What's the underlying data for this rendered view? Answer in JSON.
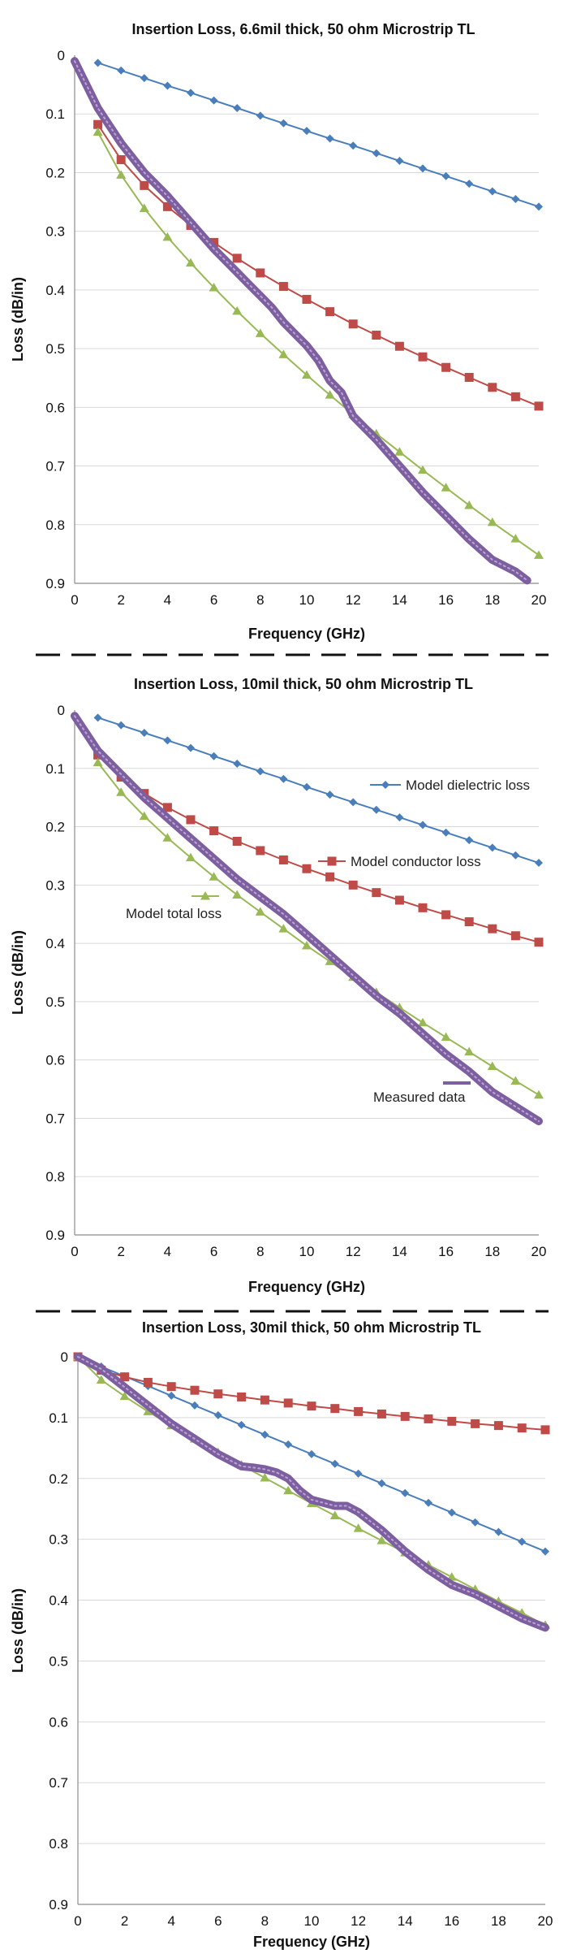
{
  "colors": {
    "dielectric": "#4a7ebb",
    "conductor": "#be4b48",
    "total": "#98b954",
    "measured": "#7d5fa0",
    "separator": "#111111"
  },
  "chart_data": [
    {
      "type": "line",
      "title": "Insertion Loss, 6.6mil thick, 50 ohm Microstrip TL",
      "xlabel": "Frequency (GHz)",
      "ylabel": "Loss (dB/in)",
      "xlim": [
        0,
        20
      ],
      "ylim": [
        0,
        0.9
      ],
      "y_reversed": true,
      "xticks": [
        "0",
        "2",
        "4",
        "6",
        "8",
        "10",
        "12",
        "14",
        "16",
        "18",
        "20"
      ],
      "yticks": [
        "0",
        "0.1",
        "0.2",
        "0.3",
        "0.4",
        "0.5",
        "0.6",
        "0.7",
        "0.8",
        "0.9"
      ],
      "grid": "horizontal",
      "legend": [],
      "series": [
        {
          "key": "dielectric",
          "marker": "diamond",
          "x": [
            1,
            2,
            3,
            4,
            5,
            6,
            7,
            8,
            9,
            10,
            11,
            12,
            13,
            14,
            15,
            16,
            17,
            18,
            19,
            20
          ],
          "y": [
            0.013,
            0.026,
            0.039,
            0.052,
            0.064,
            0.077,
            0.09,
            0.103,
            0.116,
            0.129,
            0.142,
            0.154,
            0.167,
            0.18,
            0.193,
            0.206,
            0.219,
            0.232,
            0.245,
            0.258
          ]
        },
        {
          "key": "conductor",
          "marker": "square",
          "x": [
            1,
            2,
            3,
            4,
            5,
            6,
            7,
            8,
            9,
            10,
            11,
            12,
            13,
            14,
            15,
            16,
            17,
            18,
            19,
            20
          ],
          "y": [
            0.118,
            0.178,
            0.222,
            0.258,
            0.29,
            0.319,
            0.346,
            0.371,
            0.394,
            0.416,
            0.437,
            0.458,
            0.477,
            0.496,
            0.514,
            0.532,
            0.549,
            0.566,
            0.582,
            0.598
          ]
        },
        {
          "key": "total",
          "marker": "triangle",
          "x": [
            1,
            2,
            3,
            4,
            5,
            6,
            7,
            8,
            9,
            10,
            11,
            12,
            13,
            14,
            15,
            16,
            17,
            18,
            19,
            20
          ],
          "y": [
            0.131,
            0.204,
            0.261,
            0.31,
            0.354,
            0.396,
            0.436,
            0.474,
            0.51,
            0.545,
            0.579,
            0.612,
            0.645,
            0.676,
            0.707,
            0.737,
            0.767,
            0.796,
            0.824,
            0.852
          ]
        },
        {
          "key": "measured",
          "marker": "thick",
          "x": [
            0,
            0.5,
            1,
            2,
            3,
            4,
            5,
            6,
            7,
            7.5,
            8,
            8.5,
            9,
            9.5,
            10,
            10.5,
            11,
            11.5,
            12,
            13,
            14,
            15,
            16,
            17,
            18,
            19,
            19.5
          ],
          "y": [
            0.01,
            0.05,
            0.09,
            0.15,
            0.2,
            0.24,
            0.285,
            0.33,
            0.37,
            0.39,
            0.41,
            0.43,
            0.455,
            0.475,
            0.495,
            0.52,
            0.555,
            0.575,
            0.615,
            0.655,
            0.7,
            0.745,
            0.785,
            0.825,
            0.86,
            0.88,
            0.895
          ]
        }
      ]
    },
    {
      "type": "line",
      "title": "Insertion Loss, 10mil thick, 50 ohm Microstrip TL",
      "xlabel": "Frequency (GHz)",
      "ylabel": "Loss (dB/in)",
      "xlim": [
        0,
        20
      ],
      "ylim": [
        0,
        0.9
      ],
      "y_reversed": true,
      "xticks": [
        "0",
        "2",
        "4",
        "6",
        "8",
        "10",
        "12",
        "14",
        "16",
        "18",
        "20"
      ],
      "yticks": [
        "0",
        "0.1",
        "0.2",
        "0.3",
        "0.4",
        "0.5",
        "0.6",
        "0.7",
        "0.8",
        "0.9"
      ],
      "grid": "horizontal",
      "legend": [
        {
          "key": "dielectric",
          "label": "Model dielectric loss"
        },
        {
          "key": "conductor",
          "label": "Model conductor loss"
        },
        {
          "key": "total",
          "label": "Model total loss"
        },
        {
          "key": "measured",
          "label": "Measured data"
        }
      ],
      "series": [
        {
          "key": "dielectric",
          "marker": "diamond",
          "x": [
            1,
            2,
            3,
            4,
            5,
            6,
            7,
            8,
            9,
            10,
            11,
            12,
            13,
            14,
            15,
            16,
            17,
            18,
            19,
            20
          ],
          "y": [
            0.013,
            0.026,
            0.039,
            0.052,
            0.065,
            0.079,
            0.092,
            0.105,
            0.118,
            0.132,
            0.145,
            0.158,
            0.171,
            0.184,
            0.197,
            0.21,
            0.223,
            0.236,
            0.249,
            0.262
          ]
        },
        {
          "key": "conductor",
          "marker": "square",
          "x": [
            1,
            2,
            3,
            4,
            5,
            6,
            7,
            8,
            9,
            10,
            11,
            12,
            13,
            14,
            15,
            16,
            17,
            18,
            19,
            20
          ],
          "y": [
            0.077,
            0.115,
            0.143,
            0.167,
            0.188,
            0.207,
            0.225,
            0.241,
            0.257,
            0.272,
            0.286,
            0.3,
            0.313,
            0.326,
            0.339,
            0.351,
            0.363,
            0.375,
            0.387,
            0.398
          ]
        },
        {
          "key": "total",
          "marker": "triangle",
          "x": [
            1,
            2,
            3,
            4,
            5,
            6,
            7,
            8,
            9,
            10,
            11,
            12,
            13,
            14,
            15,
            16,
            17,
            18,
            19,
            20
          ],
          "y": [
            0.09,
            0.141,
            0.182,
            0.219,
            0.253,
            0.286,
            0.317,
            0.346,
            0.375,
            0.404,
            0.431,
            0.458,
            0.484,
            0.51,
            0.536,
            0.561,
            0.586,
            0.611,
            0.636,
            0.66
          ]
        },
        {
          "key": "measured",
          "marker": "thick",
          "x": [
            0,
            0.5,
            1,
            2,
            3,
            4,
            5,
            6,
            7,
            8,
            9,
            10,
            11,
            12,
            13,
            14,
            15,
            16,
            17,
            18,
            19,
            20
          ],
          "y": [
            0.01,
            0.04,
            0.07,
            0.11,
            0.15,
            0.185,
            0.22,
            0.255,
            0.29,
            0.32,
            0.35,
            0.385,
            0.42,
            0.455,
            0.49,
            0.52,
            0.555,
            0.59,
            0.62,
            0.655,
            0.68,
            0.705
          ]
        }
      ]
    },
    {
      "type": "line",
      "title": "Insertion Loss, 30mil thick, 50 ohm Microstrip TL",
      "xlabel": "Frequency (GHz)",
      "ylabel": "Loss (dB/in)",
      "xlim": [
        0,
        20
      ],
      "ylim": [
        0,
        0.9
      ],
      "y_reversed": true,
      "xticks": [
        "0",
        "2",
        "4",
        "6",
        "8",
        "10",
        "12",
        "14",
        "16",
        "18",
        "20"
      ],
      "yticks": [
        "0",
        "0.1",
        "0.2",
        "0.3",
        "0.4",
        "0.5",
        "0.6",
        "0.7",
        "0.8",
        "0.9"
      ],
      "grid": "horizontal",
      "legend": [],
      "series": [
        {
          "key": "dielectric",
          "marker": "diamond",
          "x": [
            0,
            1,
            2,
            3,
            4,
            5,
            6,
            7,
            8,
            9,
            10,
            11,
            12,
            13,
            14,
            15,
            16,
            17,
            18,
            19,
            20
          ],
          "y": [
            0,
            0.016,
            0.032,
            0.048,
            0.064,
            0.08,
            0.096,
            0.112,
            0.128,
            0.144,
            0.16,
            0.176,
            0.192,
            0.208,
            0.224,
            0.24,
            0.256,
            0.272,
            0.288,
            0.304,
            0.32
          ]
        },
        {
          "key": "conductor",
          "marker": "square",
          "x": [
            0,
            1,
            2,
            3,
            4,
            5,
            6,
            7,
            8,
            9,
            10,
            11,
            12,
            13,
            14,
            15,
            16,
            17,
            18,
            19,
            20
          ],
          "y": [
            0,
            0.022,
            0.033,
            0.042,
            0.049,
            0.055,
            0.061,
            0.066,
            0.071,
            0.076,
            0.081,
            0.085,
            0.09,
            0.094,
            0.098,
            0.102,
            0.106,
            0.11,
            0.113,
            0.117,
            0.12
          ]
        },
        {
          "key": "total",
          "marker": "triangle",
          "x": [
            0,
            1,
            2,
            3,
            4,
            5,
            6,
            7,
            8,
            9,
            10,
            11,
            12,
            13,
            14,
            15,
            16,
            17,
            18,
            19,
            20
          ],
          "y": [
            0,
            0.038,
            0.065,
            0.09,
            0.113,
            0.135,
            0.157,
            0.178,
            0.199,
            0.22,
            0.241,
            0.261,
            0.282,
            0.302,
            0.322,
            0.342,
            0.362,
            0.382,
            0.402,
            0.421,
            0.441
          ]
        },
        {
          "key": "measured",
          "marker": "thick",
          "x": [
            0,
            1,
            2,
            3,
            4,
            5,
            6,
            7,
            7.5,
            8,
            8.5,
            9,
            9.5,
            10,
            10.5,
            11,
            11.5,
            12,
            13,
            14,
            15,
            16,
            17,
            18,
            19,
            20
          ],
          "y": [
            0,
            0.02,
            0.05,
            0.08,
            0.11,
            0.135,
            0.16,
            0.18,
            0.182,
            0.185,
            0.19,
            0.2,
            0.22,
            0.235,
            0.24,
            0.245,
            0.245,
            0.255,
            0.285,
            0.32,
            0.35,
            0.375,
            0.39,
            0.41,
            0.43,
            0.445
          ]
        }
      ]
    }
  ]
}
